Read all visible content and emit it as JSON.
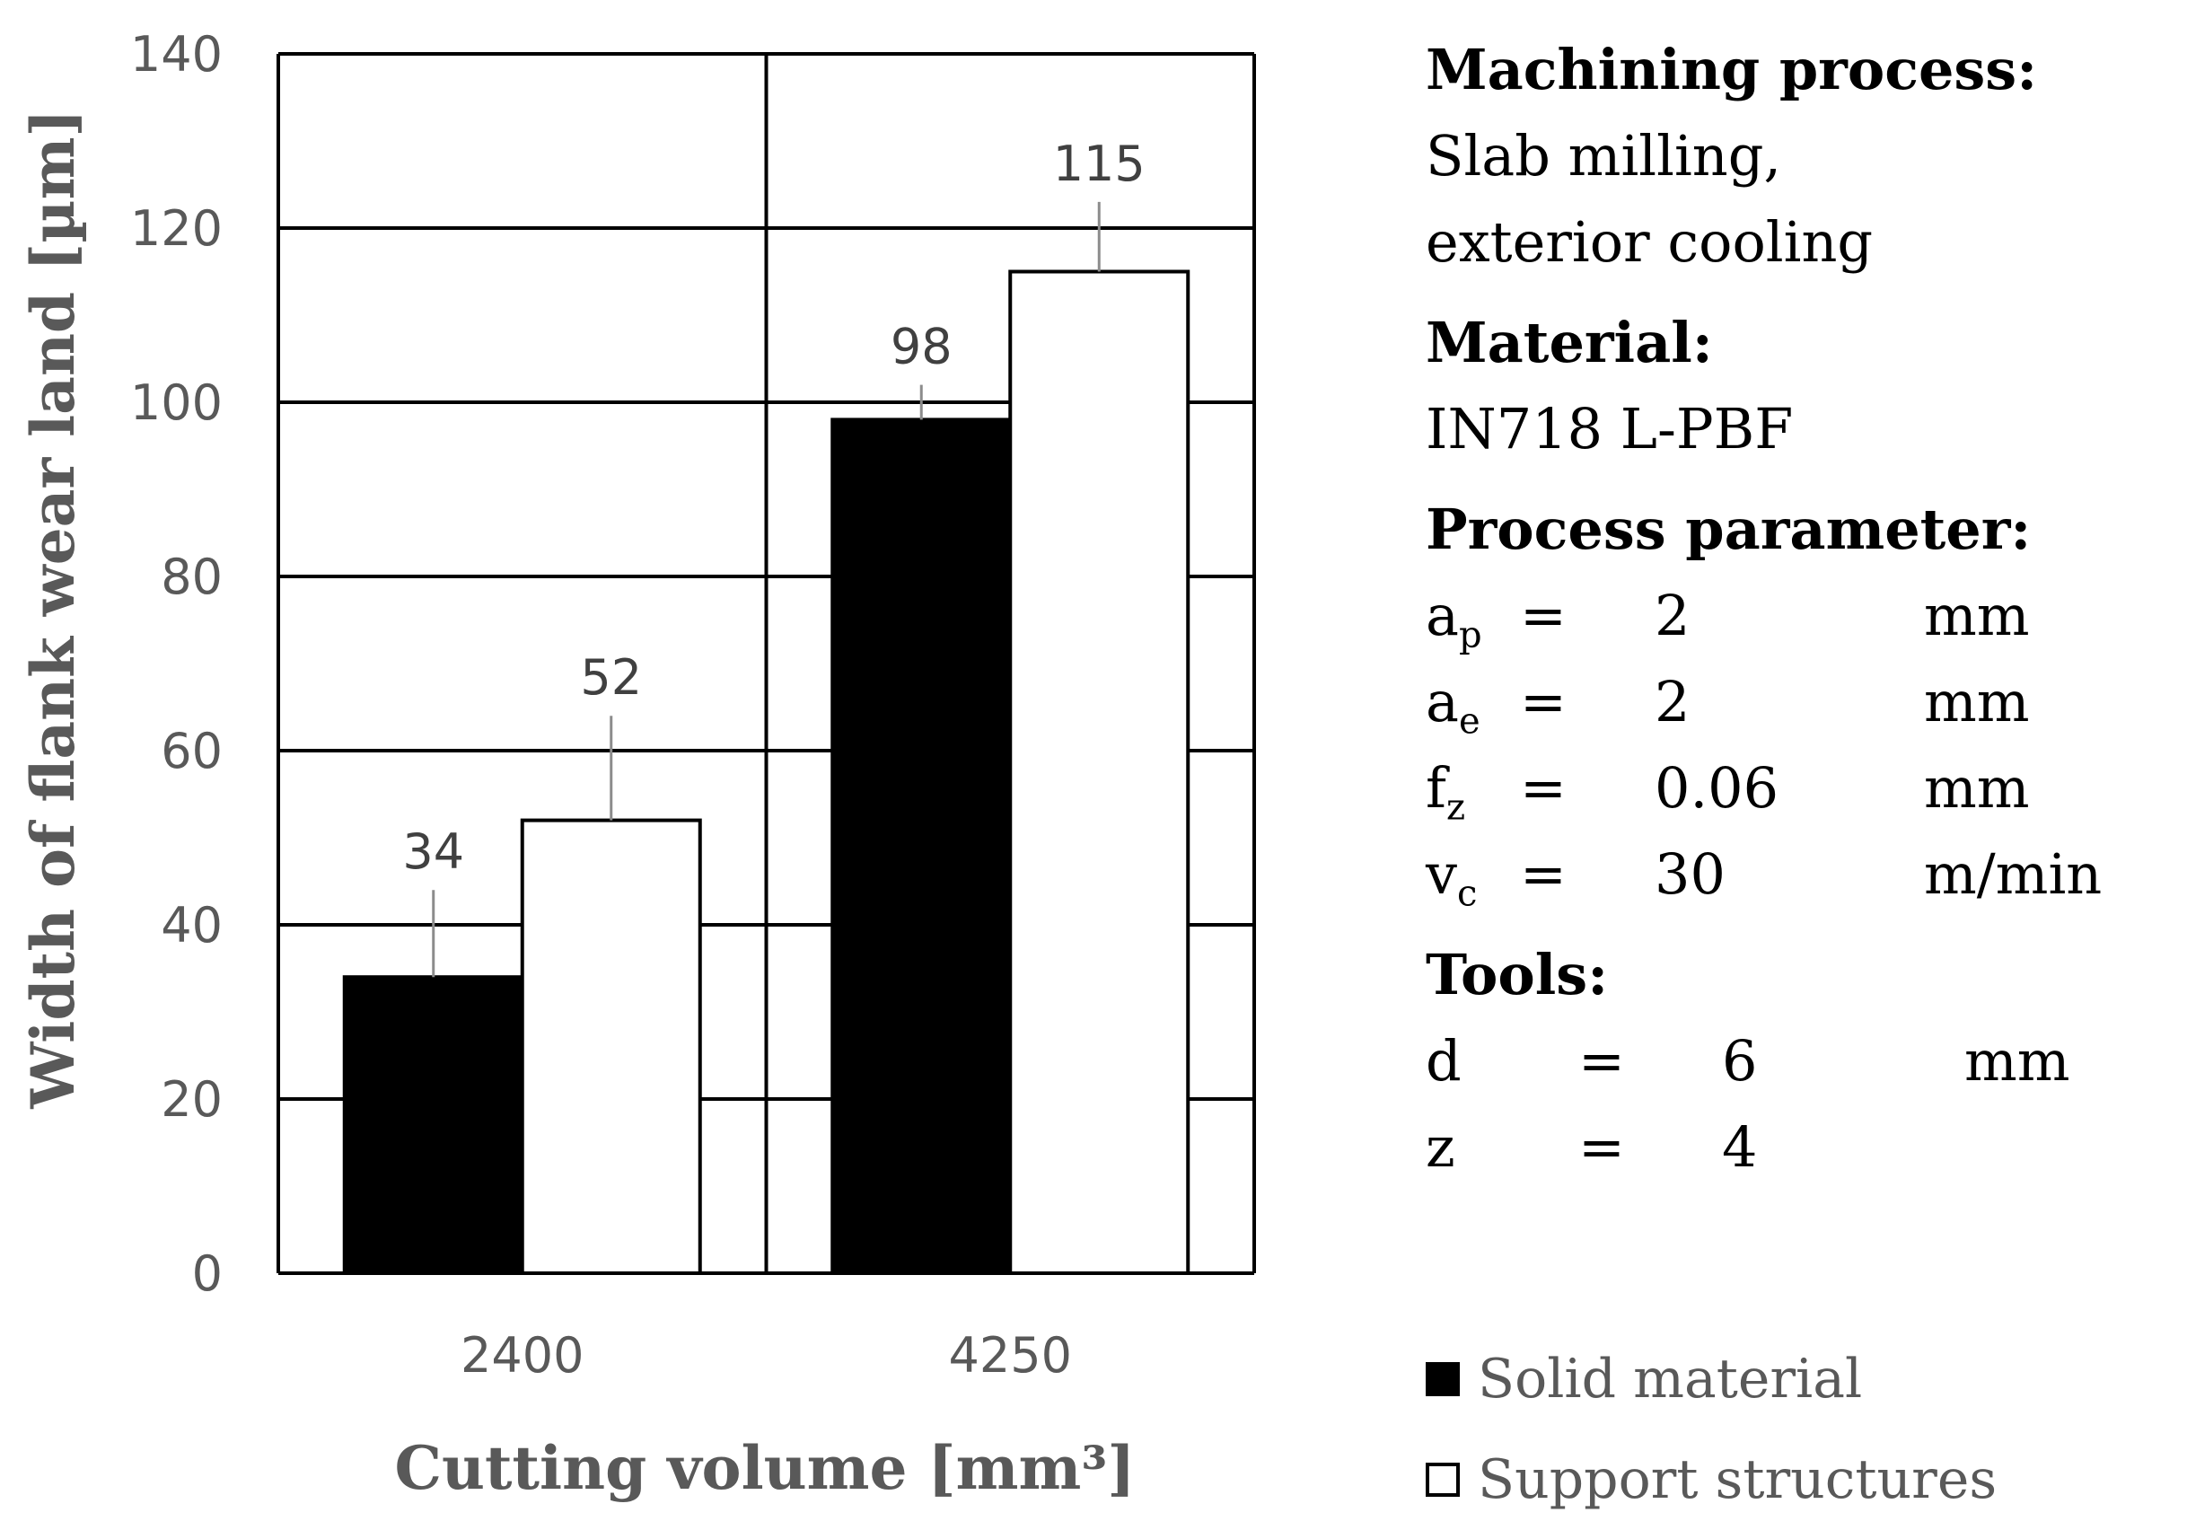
{
  "chart_data": {
    "type": "bar",
    "categories": [
      "2400",
      "4250"
    ],
    "series": [
      {
        "name": "Solid material",
        "values": [
          34,
          98
        ],
        "error": [
          10,
          4
        ],
        "color": "#000000"
      },
      {
        "name": "Support structures",
        "values": [
          52,
          115
        ],
        "error": [
          12,
          8
        ],
        "color": "#ffffff"
      }
    ],
    "data_labels": [
      [
        "34",
        "98"
      ],
      [
        "52",
        "115"
      ]
    ],
    "xlabel": "Cutting volume [mm³]",
    "ylabel": "Width of flank wear land [µm]",
    "ylim": [
      0,
      140
    ],
    "yticks": [
      "0",
      "20",
      "40",
      "60",
      "80",
      "100",
      "120",
      "140"
    ],
    "grid": true,
    "legend_position": "bottom-right"
  },
  "info": {
    "machining": {
      "heading": "Machining process:",
      "line1": "Slab milling,",
      "line2": "exterior cooling"
    },
    "material": {
      "heading": "Material:",
      "value": "IN718 L-PBF"
    },
    "params": {
      "heading": "Process parameter:",
      "rows": [
        {
          "sym": "a",
          "sub": "p",
          "eq": "=",
          "val": "2",
          "unit": "mm"
        },
        {
          "sym": "a",
          "sub": "e",
          "eq": "=",
          "val": "2",
          "unit": "mm"
        },
        {
          "sym": "f",
          "sub": "z",
          "eq": "=",
          "val": "0.06",
          "unit": "mm"
        },
        {
          "sym": "v",
          "sub": "c",
          "eq": "=",
          "val": "30",
          "unit": "m/min"
        }
      ]
    },
    "tools": {
      "heading": "Tools:",
      "rows": [
        {
          "sym": "d",
          "eq": "=",
          "val": "6",
          "unit": "mm"
        },
        {
          "sym": "z",
          "eq": "=",
          "val": "4",
          "unit": ""
        }
      ]
    }
  },
  "legend": {
    "solid": "Solid material",
    "support": "Support structures"
  }
}
